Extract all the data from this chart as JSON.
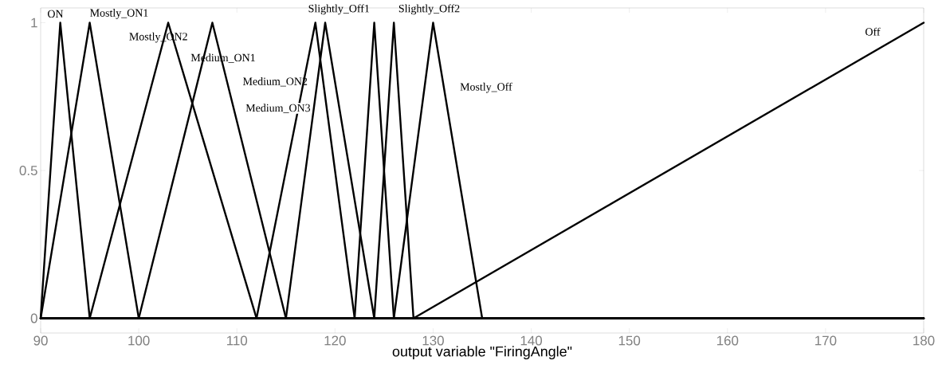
{
  "chart_data": {
    "type": "line",
    "xlabel": "output variable \"FiringAngle\"",
    "xlim": [
      90,
      180
    ],
    "ylim": [
      -0.05,
      1.05
    ],
    "xticks": [
      90,
      100,
      110,
      120,
      130,
      140,
      150,
      160,
      170,
      180
    ],
    "yticks": [
      0,
      0.5,
      1
    ],
    "line_style": "solid",
    "series": [
      {
        "name": "ON",
        "color": "#000000",
        "x": [
          90,
          92,
          95,
          180
        ],
        "values": [
          0,
          1,
          0,
          0
        ]
      },
      {
        "name": "Mostly_ON1",
        "color": "#000000",
        "x": [
          90,
          95,
          100,
          180
        ],
        "values": [
          0,
          1,
          0,
          0
        ]
      },
      {
        "name": "Mostly_ON2",
        "color": "#000000",
        "x": [
          90,
          95,
          103,
          112,
          180
        ],
        "values": [
          0,
          0,
          1,
          0,
          0
        ]
      },
      {
        "name": "Medium_ON1",
        "color": "#000000",
        "x": [
          90,
          100,
          107.5,
          115,
          180
        ],
        "values": [
          0,
          0,
          1,
          0,
          0
        ]
      },
      {
        "name": "Medium_ON2",
        "color": "#000000",
        "x": [
          90,
          112,
          118,
          122,
          180
        ],
        "values": [
          0,
          0,
          1,
          0,
          0
        ]
      },
      {
        "name": "Medium_ON3",
        "color": "#000000",
        "x": [
          90,
          115,
          119,
          124,
          180
        ],
        "values": [
          0,
          0,
          1,
          0,
          0
        ]
      },
      {
        "name": "Slightly_Off1",
        "color": "#000000",
        "x": [
          90,
          122,
          124,
          126,
          180
        ],
        "values": [
          0,
          0,
          1,
          0,
          0
        ]
      },
      {
        "name": "Slightly_Off2",
        "color": "#000000",
        "x": [
          90,
          124,
          126,
          128,
          180
        ],
        "values": [
          0,
          0,
          1,
          0,
          0
        ]
      },
      {
        "name": "Mostly_Off",
        "color": "#000000",
        "x": [
          90,
          126,
          130,
          135,
          180
        ],
        "values": [
          0,
          0,
          1,
          0,
          0
        ]
      },
      {
        "name": "Off",
        "color": "#000000",
        "x": [
          90,
          128,
          180
        ],
        "values": [
          0,
          0,
          1
        ]
      }
    ]
  }
}
